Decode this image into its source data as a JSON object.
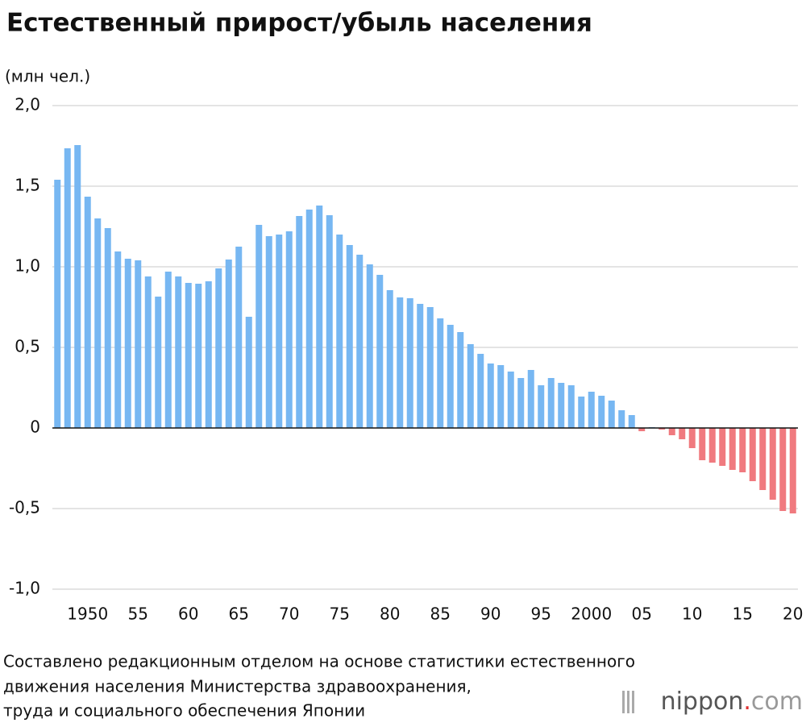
{
  "chart_data": {
    "type": "bar",
    "title": "Естественный прирост/убыль населения",
    "y_label": "(млн чел.)",
    "categories": [
      null,
      null,
      null,
      "1950",
      null,
      null,
      null,
      null,
      "55",
      null,
      null,
      null,
      null,
      "60",
      null,
      null,
      null,
      null,
      "65",
      null,
      null,
      null,
      null,
      "70",
      null,
      null,
      null,
      null,
      "75",
      null,
      null,
      null,
      null,
      "80",
      null,
      null,
      null,
      null,
      "85",
      null,
      null,
      null,
      null,
      "90",
      null,
      null,
      null,
      null,
      "95",
      null,
      null,
      null,
      null,
      "2000",
      null,
      null,
      null,
      null,
      "05",
      null,
      null,
      null,
      null,
      "10",
      null,
      null,
      null,
      null,
      "15",
      null,
      null,
      null,
      null,
      "20"
    ],
    "values": [
      1.54,
      1.735,
      1.755,
      1.435,
      1.3,
      1.24,
      1.095,
      1.05,
      1.04,
      0.94,
      0.815,
      0.97,
      0.94,
      0.9,
      0.895,
      0.91,
      0.99,
      1.045,
      1.125,
      0.69,
      1.26,
      1.19,
      1.2,
      1.22,
      1.315,
      1.355,
      1.38,
      1.32,
      1.2,
      1.135,
      1.075,
      1.015,
      0.95,
      0.855,
      0.81,
      0.805,
      0.77,
      0.75,
      0.68,
      0.64,
      0.595,
      0.52,
      0.46,
      0.4,
      0.39,
      0.35,
      0.31,
      0.36,
      0.265,
      0.31,
      0.28,
      0.265,
      0.195,
      0.225,
      0.2,
      0.17,
      0.11,
      0.08,
      -0.02,
      0.005,
      -0.01,
      -0.045,
      -0.07,
      -0.125,
      -0.2,
      -0.215,
      -0.235,
      -0.26,
      -0.275,
      -0.33,
      -0.385,
      -0.445,
      -0.515,
      -0.53
    ],
    "colors": {
      "positive": "#77b7f2",
      "negative": "#f07a7f"
    },
    "ylim": [
      -1,
      2
    ],
    "yticks": [
      {
        "value": -1,
        "label": "-1,0"
      },
      {
        "value": -0.5,
        "label": "-0,5"
      },
      0,
      {
        "value": 0.5,
        "label": "0,5"
      },
      {
        "value": 1,
        "label": "1,0"
      },
      {
        "value": 1.5,
        "label": "1,5"
      },
      {
        "value": 2,
        "label": "2,0"
      }
    ],
    "grid": true,
    "source_lines": [
      "Составлено редакционным отделом на основе статистики естественного",
      "движения населения Министерства здравоохранения,",
      "труда и социального обеспечения Японии"
    ],
    "logo": [
      "nippon",
      ".",
      "com"
    ]
  }
}
